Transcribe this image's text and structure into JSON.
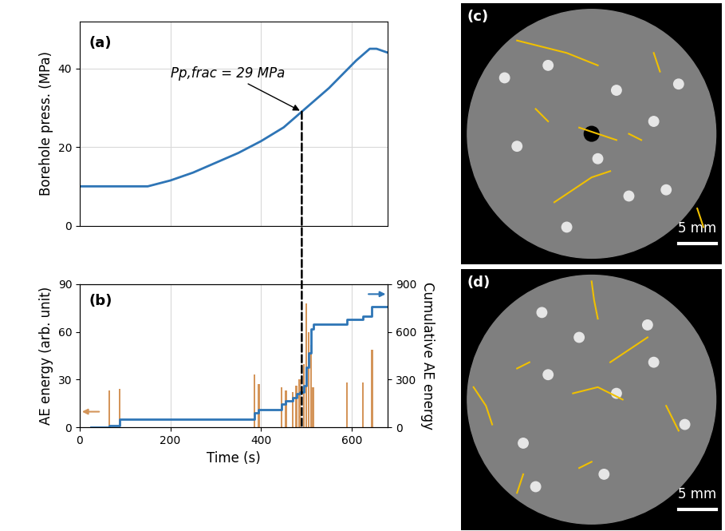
{
  "chart_data": [
    {
      "type": "line",
      "title": "(a)",
      "ylabel": "Borehole press. (MPa)",
      "x": [
        0,
        150,
        200,
        250,
        300,
        350,
        400,
        450,
        490,
        520,
        550,
        580,
        610,
        640,
        655,
        680
      ],
      "values": [
        10,
        10,
        11.5,
        13.5,
        16,
        18.5,
        21.5,
        25,
        29,
        32,
        35,
        38.5,
        42,
        45,
        45,
        44
      ],
      "color": "#2e75b6",
      "xlim": [
        0,
        680
      ],
      "xticks": [
        0,
        200,
        400,
        600
      ],
      "ylim": [
        0,
        52
      ],
      "yticks": [
        0,
        20,
        40
      ],
      "grid": true,
      "tick_labels": "y",
      "annotation": {
        "text": "Pp,frac = 29 MPa",
        "x": 490,
        "y": 29
      }
    },
    {
      "type": "bar",
      "title": "(b)",
      "xlabel": "Time (s)",
      "ylabel": "AE energy (arb. unit)",
      "y2label": "Cumulative AE energy",
      "xlim": [
        0,
        680
      ],
      "xticks": [
        0,
        200,
        400,
        600
      ],
      "ylim": [
        0,
        90
      ],
      "yticks": [
        0,
        30,
        60,
        90
      ],
      "y2lim": [
        0,
        900
      ],
      "y2ticks": [
        0,
        300,
        600,
        900
      ],
      "grid": true,
      "series": [
        {
          "type": "bar",
          "color": "#d4955a",
          "x": [
            65,
            88,
            385,
            395,
            445,
            455,
            470,
            478,
            485,
            495,
            500,
            505,
            510,
            515,
            590,
            625,
            645
          ],
          "values": [
            23,
            24,
            33,
            27,
            25,
            23,
            22,
            26,
            30,
            40,
            78,
            60,
            52,
            25,
            28,
            28,
            49
          ]
        },
        {
          "type": "line",
          "line_style": "steps",
          "axis": "y2",
          "color": "#2e75b6",
          "x": [
            25,
            60,
            65,
            88,
            385,
            395,
            445,
            455,
            470,
            478,
            485,
            495,
            500,
            505,
            510,
            515,
            590,
            625,
            645,
            680
          ],
          "values": [
            0,
            0,
            10,
            50,
            90,
            110,
            145,
            165,
            185,
            210,
            220,
            260,
            380,
            470,
            620,
            650,
            680,
            700,
            760,
            760
          ]
        }
      ]
    }
  ],
  "images": [
    {
      "label": "(c)",
      "scale_bar": "5 mm"
    },
    {
      "label": "(d)",
      "scale_bar": "5 mm"
    }
  ]
}
